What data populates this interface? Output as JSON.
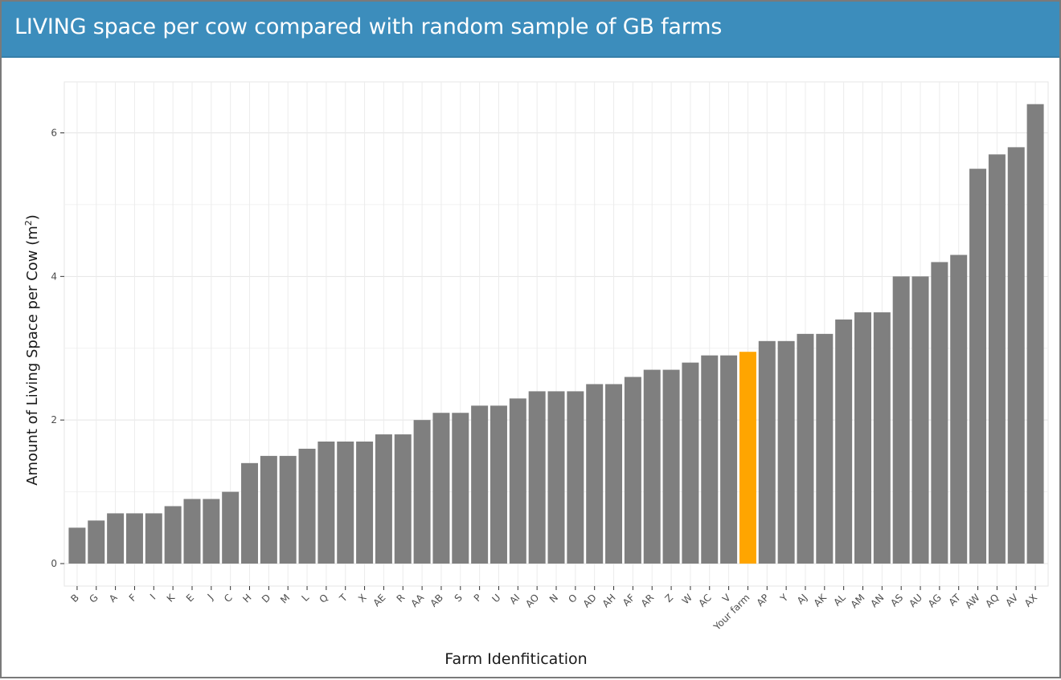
{
  "panel": {
    "title": "LIVING space per cow compared with random sample of GB farms"
  },
  "colors": {
    "header_bg": "#3c8dbc",
    "bar_default": "#7f7f7f",
    "bar_highlight": "#ffa500",
    "panel_bg": "#ebebeb",
    "grid": "#ffffff"
  },
  "chart_data": {
    "type": "bar",
    "title": "",
    "xlabel": "Farm Idenfitication",
    "ylabel_prefix": "Amount of Living Space per Cow (m",
    "ylabel_sup": "2",
    "ylabel_suffix": ")",
    "ylim": [
      0,
      6.6
    ],
    "yticks": [
      0,
      2,
      4,
      6
    ],
    "grid": true,
    "legend": "none",
    "highlight_category": "Your farm",
    "categories": [
      "B",
      "G",
      "A",
      "F",
      "I",
      "K",
      "E",
      "J",
      "C",
      "H",
      "D",
      "M",
      "L",
      "Q",
      "T",
      "X",
      "AE",
      "R",
      "AA",
      "AB",
      "S",
      "P",
      "U",
      "AI",
      "AO",
      "N",
      "O",
      "AD",
      "AH",
      "AF",
      "AR",
      "Z",
      "W",
      "AC",
      "V",
      "Your farm",
      "AP",
      "Y",
      "AJ",
      "AK",
      "AL",
      "AM",
      "AN",
      "AS",
      "AU",
      "AG",
      "AT",
      "AW",
      "AQ",
      "AV",
      "AX"
    ],
    "values": [
      0.5,
      0.6,
      0.7,
      0.7,
      0.7,
      0.8,
      0.9,
      0.9,
      1.0,
      1.4,
      1.5,
      1.5,
      1.6,
      1.7,
      1.7,
      1.7,
      1.8,
      1.8,
      2.0,
      2.1,
      2.1,
      2.2,
      2.2,
      2.3,
      2.4,
      2.4,
      2.4,
      2.5,
      2.5,
      2.6,
      2.7,
      2.7,
      2.8,
      2.9,
      2.9,
      2.95,
      3.1,
      3.1,
      3.2,
      3.2,
      3.4,
      3.5,
      3.5,
      4.0,
      4.0,
      4.2,
      4.3,
      5.5,
      5.7,
      5.8,
      6.4
    ]
  }
}
